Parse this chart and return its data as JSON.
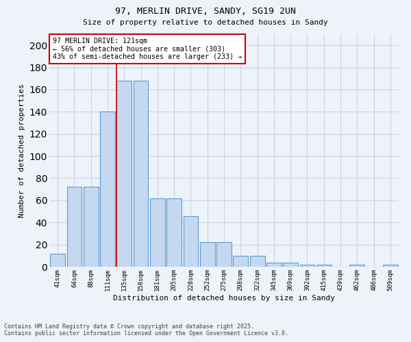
{
  "title_line1": "97, MERLIN DRIVE, SANDY, SG19 2UN",
  "title_line2": "Size of property relative to detached houses in Sandy",
  "xlabel": "Distribution of detached houses by size in Sandy",
  "ylabel": "Number of detached properties",
  "categories": [
    "41sqm",
    "64sqm",
    "88sqm",
    "111sqm",
    "135sqm",
    "158sqm",
    "181sqm",
    "205sqm",
    "228sqm",
    "252sqm",
    "275sqm",
    "298sqm",
    "322sqm",
    "345sqm",
    "369sqm",
    "392sqm",
    "415sqm",
    "439sqm",
    "462sqm",
    "486sqm",
    "509sqm"
  ],
  "values": [
    12,
    72,
    72,
    140,
    168,
    168,
    62,
    62,
    46,
    22,
    22,
    10,
    10,
    4,
    4,
    2,
    2,
    0,
    2,
    0,
    2
  ],
  "bar_color": "#c5d8f0",
  "bar_edge_color": "#5b9bd5",
  "grid_color": "#c8d4e8",
  "background_color": "#eef2f9",
  "annotation_text": "97 MERLIN DRIVE: 121sqm\n← 56% of detached houses are smaller (303)\n43% of semi-detached houses are larger (233) →",
  "annotation_box_color": "#ffffff",
  "annotation_box_edge": "#cc0000",
  "vline_color": "#cc0000",
  "vline_x_index": 4,
  "ylim": [
    0,
    210
  ],
  "yticks": [
    0,
    20,
    40,
    60,
    80,
    100,
    120,
    140,
    160,
    180,
    200
  ],
  "footer_line1": "Contains HM Land Registry data © Crown copyright and database right 2025.",
  "footer_line2": "Contains public sector information licensed under the Open Government Licence v3.0."
}
